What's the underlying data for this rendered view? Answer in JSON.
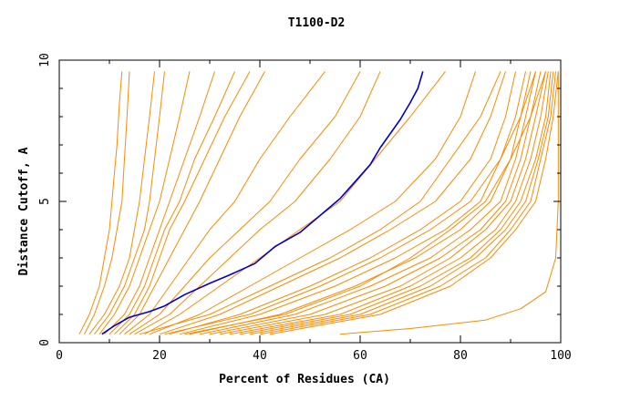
{
  "chart_data": {
    "type": "line",
    "title": "T1100-D2",
    "xlabel": "Percent of Residues (CA)",
    "ylabel": "Distance Cutoff, A",
    "xlim": [
      0,
      100
    ],
    "ylim": [
      0,
      10
    ],
    "xticks": [
      "0",
      "20",
      "40",
      "60",
      "80",
      "100"
    ],
    "yticks": [
      "0",
      "5",
      "10"
    ],
    "grid": false,
    "colors": {
      "highlight": "#0000cc",
      "others": "#ff8800",
      "axis": "#000000"
    },
    "highlight_series": {
      "x": [
        8.5,
        11,
        14,
        18,
        21,
        25,
        30,
        34,
        39,
        43,
        48,
        52,
        56,
        59,
        62,
        64,
        66,
        68,
        70,
        71.5,
        72.5
      ],
      "y": [
        0.3,
        0.6,
        0.9,
        1.1,
        1.3,
        1.7,
        2.1,
        2.4,
        2.8,
        3.4,
        3.9,
        4.5,
        5.1,
        5.7,
        6.3,
        6.9,
        7.4,
        7.9,
        8.5,
        9.0,
        9.6
      ]
    },
    "series": [
      {
        "x": [
          4,
          6,
          8,
          9,
          10,
          10.5,
          11,
          11.5,
          12,
          12.5
        ],
        "y": [
          0.3,
          1.0,
          2.0,
          3.0,
          4.0,
          5.0,
          6.0,
          7.0,
          8.5,
          9.6
        ]
      },
      {
        "x": [
          5,
          7,
          9,
          10.5,
          11.5,
          12.5,
          13,
          13.5,
          14
        ],
        "y": [
          0.3,
          1.0,
          2.0,
          3.0,
          4.0,
          5.0,
          6.5,
          8.0,
          9.6
        ]
      },
      {
        "x": [
          6,
          9,
          12,
          14,
          15,
          16,
          17,
          18,
          19
        ],
        "y": [
          0.3,
          1.0,
          2.0,
          3.0,
          4.0,
          5.0,
          6.5,
          8.0,
          9.6
        ]
      },
      {
        "x": [
          7,
          10,
          13,
          15,
          17,
          18,
          19,
          20,
          21
        ],
        "y": [
          0.3,
          1.0,
          2.0,
          3.0,
          4.0,
          5.0,
          6.5,
          8.0,
          9.6
        ]
      },
      {
        "x": [
          8,
          11,
          14,
          16,
          18,
          20,
          22,
          24,
          26
        ],
        "y": [
          0.3,
          1.0,
          2.0,
          3.0,
          4.0,
          5.0,
          6.5,
          8.0,
          9.6
        ]
      },
      {
        "x": [
          9,
          13,
          16,
          18,
          20,
          22,
          25,
          28,
          31
        ],
        "y": [
          0.3,
          1.0,
          2.0,
          3.0,
          4.0,
          5.0,
          6.5,
          8.0,
          9.6
        ]
      },
      {
        "x": [
          10,
          14,
          17,
          19,
          21,
          24,
          27,
          31,
          35
        ],
        "y": [
          0.3,
          1.0,
          2.0,
          3.0,
          4.0,
          5.0,
          6.5,
          8.0,
          9.6
        ]
      },
      {
        "x": [
          11,
          15,
          18,
          20,
          22,
          25,
          29,
          33,
          38
        ],
        "y": [
          0.3,
          1.0,
          2.0,
          3.0,
          4.0,
          5.0,
          6.5,
          8.0,
          9.6
        ]
      },
      {
        "x": [
          12,
          16,
          19,
          22,
          25,
          28,
          32,
          36,
          41
        ],
        "y": [
          0.3,
          1.0,
          2.0,
          3.0,
          4.0,
          5.0,
          6.5,
          8.0,
          9.6
        ]
      },
      {
        "x": [
          13,
          18,
          22,
          26,
          30,
          35,
          40,
          46,
          53
        ],
        "y": [
          0.3,
          1.0,
          2.0,
          3.0,
          4.0,
          5.0,
          6.5,
          8.0,
          9.6
        ]
      },
      {
        "x": [
          14,
          20,
          25,
          30,
          36,
          42,
          48,
          55,
          60
        ],
        "y": [
          0.3,
          1.0,
          2.0,
          3.0,
          4.0,
          5.0,
          6.5,
          8.0,
          9.6
        ]
      },
      {
        "x": [
          15,
          22,
          28,
          34,
          40,
          47,
          54,
          60,
          64
        ],
        "y": [
          0.3,
          1.0,
          2.0,
          3.0,
          4.0,
          5.0,
          6.5,
          8.0,
          9.6
        ]
      },
      {
        "x": [
          17,
          24,
          32,
          40,
          48,
          56,
          63,
          70,
          77
        ],
        "y": [
          0.3,
          1.0,
          2.0,
          3.0,
          4.0,
          5.0,
          6.5,
          8.0,
          9.6
        ]
      },
      {
        "x": [
          18,
          28,
          38,
          48,
          58,
          67,
          75,
          80,
          83
        ],
        "y": [
          0.3,
          1.0,
          2.0,
          3.0,
          4.0,
          5.0,
          6.5,
          8.0,
          9.6
        ]
      },
      {
        "x": [
          20,
          32,
          44,
          56,
          66,
          75,
          82,
          86,
          89
        ],
        "y": [
          0.3,
          1.0,
          2.0,
          3.0,
          4.0,
          5.0,
          6.5,
          8.0,
          9.6
        ]
      },
      {
        "x": [
          22,
          36,
          50,
          62,
          72,
          80,
          86,
          89,
          91
        ],
        "y": [
          0.3,
          1.0,
          2.0,
          3.0,
          4.0,
          5.0,
          6.5,
          8.0,
          9.6
        ]
      },
      {
        "x": [
          24,
          40,
          55,
          67,
          77,
          84,
          88,
          91,
          93
        ],
        "y": [
          0.3,
          1.0,
          2.0,
          3.0,
          4.0,
          5.0,
          6.5,
          8.0,
          9.6
        ]
      },
      {
        "x": [
          26,
          44,
          59,
          71,
          80,
          86,
          90,
          92,
          94
        ],
        "y": [
          0.3,
          1.0,
          2.0,
          3.0,
          4.0,
          5.0,
          6.5,
          8.0,
          9.6
        ]
      },
      {
        "x": [
          28,
          47,
          62,
          74,
          82,
          88,
          91,
          93,
          95
        ],
        "y": [
          0.3,
          1.0,
          2.0,
          3.0,
          4.0,
          5.0,
          6.5,
          8.0,
          9.6
        ]
      },
      {
        "x": [
          30,
          50,
          65,
          76,
          84,
          89,
          92,
          94,
          96
        ],
        "y": [
          0.3,
          1.0,
          2.0,
          3.0,
          4.0,
          5.0,
          6.5,
          8.0,
          9.6
        ]
      },
      {
        "x": [
          32,
          53,
          68,
          78,
          85,
          90,
          93,
          95,
          97
        ],
        "y": [
          0.3,
          1.0,
          2.0,
          3.0,
          4.0,
          5.0,
          6.5,
          8.0,
          9.6
        ]
      },
      {
        "x": [
          34,
          56,
          70,
          80,
          87,
          91,
          94,
          96,
          97.5
        ],
        "y": [
          0.3,
          1.0,
          2.0,
          3.0,
          4.0,
          5.0,
          6.5,
          8.0,
          9.6
        ]
      },
      {
        "x": [
          36,
          58,
          72,
          82,
          88,
          92,
          95,
          97,
          98
        ],
        "y": [
          0.3,
          1.0,
          2.0,
          3.0,
          4.0,
          5.0,
          6.5,
          8.0,
          9.6
        ]
      },
      {
        "x": [
          38,
          60,
          74,
          83,
          89,
          93,
          95.5,
          97.5,
          98.5
        ],
        "y": [
          0.3,
          1.0,
          2.0,
          3.0,
          4.0,
          5.0,
          6.5,
          8.0,
          9.6
        ]
      },
      {
        "x": [
          40,
          62,
          76,
          85,
          90,
          94,
          96,
          98,
          99
        ],
        "y": [
          0.3,
          1.0,
          2.0,
          3.0,
          4.0,
          5.0,
          6.5,
          8.0,
          9.6
        ]
      },
      {
        "x": [
          42,
          64,
          78,
          86,
          91,
          95,
          97,
          98.5,
          99.5
        ],
        "y": [
          0.3,
          1.0,
          2.0,
          3.0,
          4.0,
          5.0,
          6.5,
          8.0,
          9.6
        ]
      },
      {
        "x": [
          25,
          45,
          60,
          70,
          78,
          85,
          90,
          94,
          97
        ],
        "y": [
          0.3,
          1.0,
          2.0,
          3.0,
          4.0,
          5.0,
          6.5,
          8.0,
          9.6
        ]
      },
      {
        "x": [
          21,
          38,
          52,
          64,
          74,
          82,
          88,
          92,
          95
        ],
        "y": [
          0.3,
          1.0,
          2.0,
          3.0,
          4.0,
          5.0,
          6.5,
          8.0,
          9.6
        ]
      },
      {
        "x": [
          16,
          30,
          42,
          54,
          64,
          72,
          78,
          84,
          88
        ],
        "y": [
          0.3,
          1.0,
          2.0,
          3.0,
          4.0,
          5.0,
          6.5,
          8.0,
          9.6
        ]
      },
      {
        "x": [
          56,
          70,
          85,
          92,
          97,
          99,
          99.5,
          99.5,
          99.5,
          99.5
        ],
        "y": [
          0.3,
          0.5,
          0.8,
          1.2,
          1.8,
          3.0,
          5.0,
          7.0,
          8.5,
          9.6
        ]
      }
    ]
  }
}
